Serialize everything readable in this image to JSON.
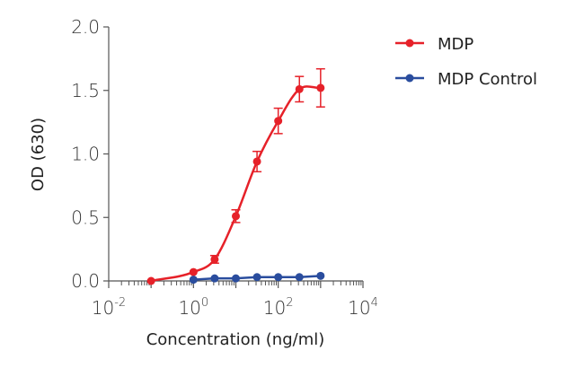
{
  "chart_data": {
    "type": "line",
    "xlabel": "Concentration (ng/ml)",
    "ylabel": "OD (630)",
    "xscale": "log",
    "xlim": [
      0.01,
      10000
    ],
    "ylim": [
      0,
      2.0
    ],
    "xticks": [
      {
        "base": "10",
        "exp": "-2",
        "value": 0.01
      },
      {
        "base": "10",
        "exp": "0",
        "value": 1
      },
      {
        "base": "10",
        "exp": "2",
        "value": 100
      },
      {
        "base": "10",
        "exp": "4",
        "value": 10000
      }
    ],
    "yticks": [
      "0.0",
      "0.5",
      "1.0",
      "1.5",
      "2.0"
    ],
    "grid": false,
    "legend_position": "top-right",
    "series": [
      {
        "name": "MDP",
        "color": "#e62129",
        "x": [
          0.1,
          1,
          3.16,
          10,
          31.6,
          100,
          316,
          1000
        ],
        "y": [
          0.0,
          0.07,
          0.17,
          0.51,
          0.94,
          1.26,
          1.51,
          1.52
        ],
        "error": [
          0,
          0,
          0.03,
          0.05,
          0.08,
          0.1,
          0.1,
          0.15
        ],
        "fit": "sigmoidal"
      },
      {
        "name": "MDP Control",
        "color": "#2a4d9e",
        "x": [
          1,
          3.16,
          10,
          31.6,
          100,
          316,
          1000
        ],
        "y": [
          0.01,
          0.02,
          0.02,
          0.03,
          0.03,
          0.03,
          0.04
        ],
        "error": [
          0,
          0,
          0,
          0,
          0,
          0,
          0
        ]
      }
    ]
  }
}
